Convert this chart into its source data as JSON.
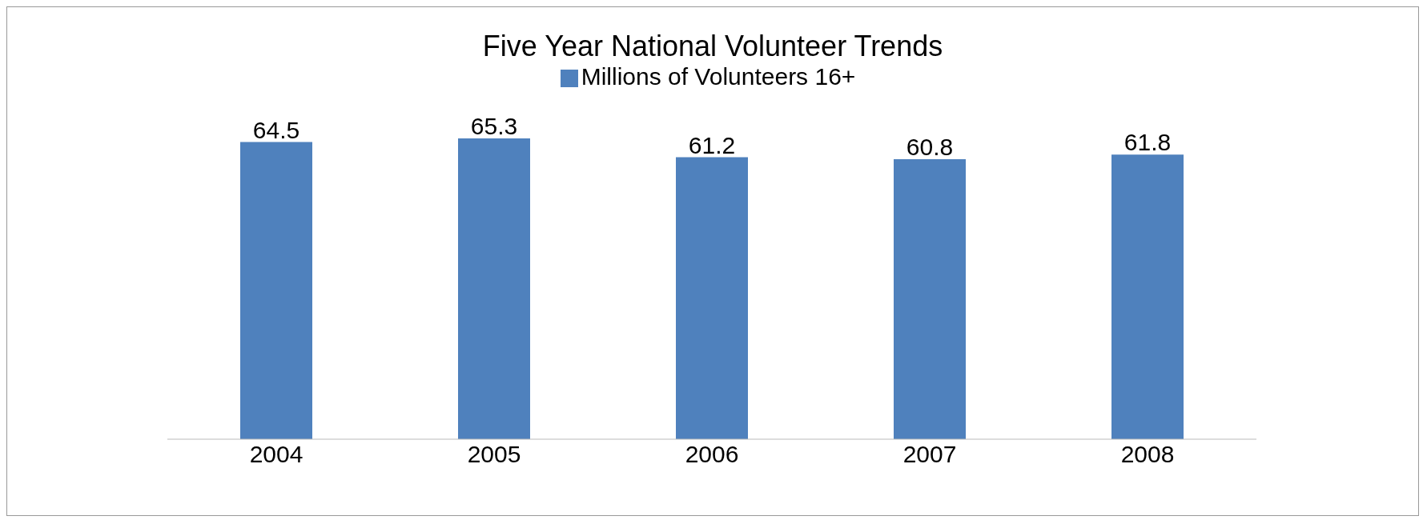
{
  "chart_data": {
    "type": "bar",
    "title": "Five Year National Volunteer Trends",
    "categories": [
      "2004",
      "2005",
      "2006",
      "2007",
      "2008"
    ],
    "series": [
      {
        "name": "Millions of  Volunteers 16+",
        "color": "#4f81bd",
        "values": [
          64.5,
          65.3,
          61.2,
          60.8,
          61.8
        ]
      }
    ],
    "data_labels": true,
    "legend": "top",
    "grid": false
  }
}
